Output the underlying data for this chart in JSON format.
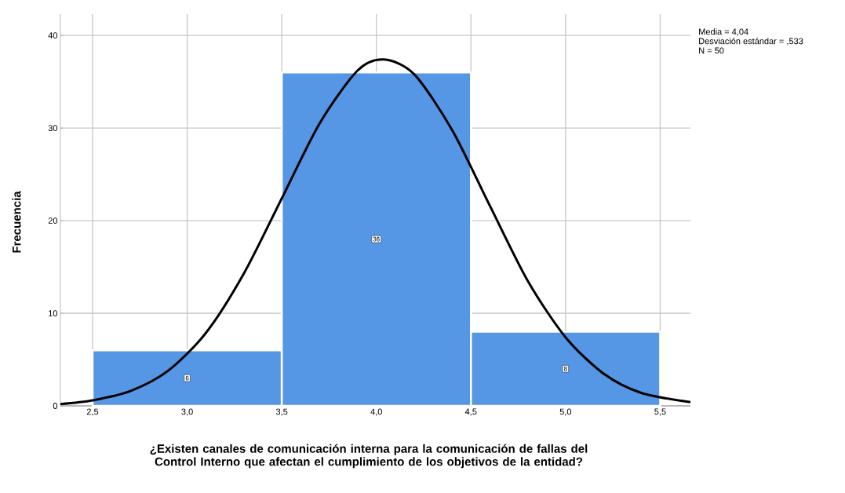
{
  "chart_data": {
    "type": "histogram",
    "xlabel": "¿Existen canales de comunicación interna para la comunicación de fallas del Control Interno que afectan el cumplimiento de los objetivos de la entidad?",
    "ylabel": "Frecuencia",
    "bins": [
      2.5,
      3.5,
      4.5,
      5.5
    ],
    "values": [
      6,
      36,
      8
    ],
    "color": "#5596e5",
    "value_labels": [
      "6",
      "36",
      "8"
    ],
    "series": [
      {
        "type": "line",
        "color": "#000000",
        "x": [
          2.33,
          2.5,
          2.7,
          2.9,
          3.1,
          3.3,
          3.5,
          3.7,
          3.9,
          4.04,
          4.2,
          4.4,
          4.6,
          4.8,
          5.0,
          5.2,
          5.4,
          5.66
        ],
        "values": [
          0.2,
          0.6,
          1.6,
          3.8,
          7.9,
          14.3,
          22.4,
          30.5,
          36.2,
          37.4,
          35.8,
          29.8,
          21.6,
          13.5,
          7.4,
          3.5,
          1.4,
          0.4
        ]
      }
    ],
    "xlim": [
      2.33,
      5.66
    ],
    "ylim": [
      0,
      42.3
    ],
    "xticks": [
      {
        "value": 2.5,
        "label": "2,5"
      },
      {
        "value": 3.0,
        "label": "3,0"
      },
      {
        "value": 3.5,
        "label": "3,5"
      },
      {
        "value": 4.0,
        "label": "4,0"
      },
      {
        "value": 4.5,
        "label": "4,5"
      },
      {
        "value": 5.0,
        "label": "5,0"
      },
      {
        "value": 5.5,
        "label": "5,5"
      }
    ],
    "yticks": [
      0,
      10,
      20,
      30,
      40
    ],
    "grid": true,
    "annotations": [
      "Media = 4,04",
      "Desviación estándar = ,533",
      "N = 50"
    ]
  }
}
